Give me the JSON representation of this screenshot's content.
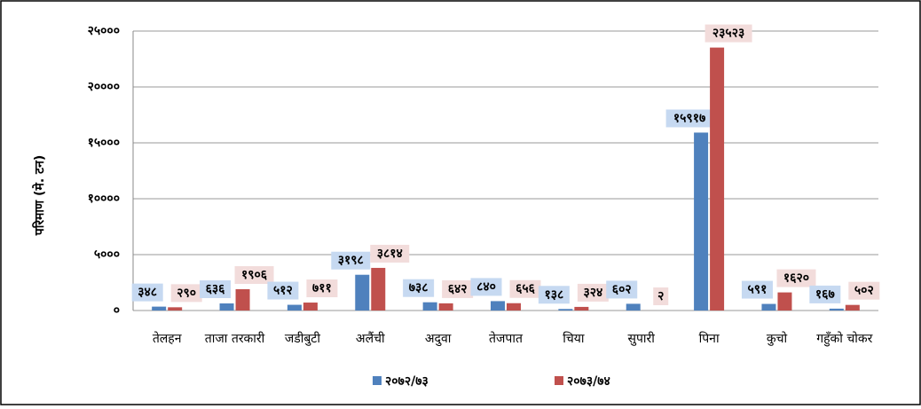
{
  "chart_data": {
    "type": "bar",
    "y_label": "परिमाण (मे. टन)",
    "categories": [
      "तेलहन",
      "ताजा तरकारी",
      "जडीबुटी",
      "अलैंची",
      "अदुवा",
      "तेजपात",
      "चिया",
      "सुपारी",
      "पिना",
      "कुचो",
      "गहुँको चोकर"
    ],
    "series": [
      {
        "name": "२०७२/७३",
        "color": "#4f81bd",
        "label_bg": "#c6d9f1",
        "values": [
          348,
          636,
          512,
          3198,
          738,
          840,
          138,
          602,
          15917,
          591,
          167
        ],
        "value_labels": [
          "३४८",
          "६३६",
          "५१२",
          "३१९८",
          "७३८",
          "८४०",
          "१३८",
          "६०२",
          "१५९१७",
          "५९१",
          "१६७"
        ]
      },
      {
        "name": "२०७३/७४",
        "color": "#c0504d",
        "label_bg": "#f2dcdb",
        "values": [
          290,
          1906,
          711,
          3814,
          642,
          656,
          324,
          2,
          23523,
          1620,
          502
        ],
        "value_labels": [
          "२९०",
          "१९०६",
          "७११",
          "३८१४",
          "६४२",
          "६५६",
          "३२४",
          "२",
          "२३५२३",
          "१६२०",
          "५०२"
        ]
      }
    ],
    "ylim": [
      0,
      25000
    ],
    "yticks": [
      {
        "value": 0,
        "label": "०"
      },
      {
        "value": 5000,
        "label": "५०००"
      },
      {
        "value": 10000,
        "label": "१००००"
      },
      {
        "value": 15000,
        "label": "१५०००"
      },
      {
        "value": 20000,
        "label": "२००००"
      },
      {
        "value": 25000,
        "label": "२५०००"
      }
    ],
    "grid": true
  }
}
